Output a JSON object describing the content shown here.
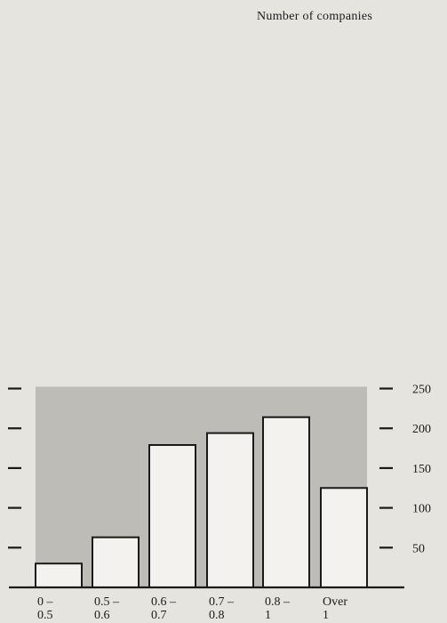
{
  "chart_data": {
    "type": "bar",
    "ylabel": "Number of companies",
    "categories": [
      [
        "0 –",
        "0.5"
      ],
      [
        "0.5 –",
        "0.6"
      ],
      [
        "0.6 –",
        "0.7"
      ],
      [
        "0.7 –",
        "0.8"
      ],
      [
        "0.8 –",
        "1"
      ],
      [
        "Over",
        "1"
      ]
    ],
    "values": [
      30,
      63,
      179,
      194,
      214,
      125
    ],
    "yticks": [
      50,
      100,
      150,
      200,
      250
    ],
    "ylim": [
      0,
      250
    ],
    "colors": {
      "background": "#e6e4de",
      "shaded_panel": "#bdbcb6",
      "bar_fill": "#f3f2ee",
      "stroke": "#1a1a1a"
    }
  }
}
